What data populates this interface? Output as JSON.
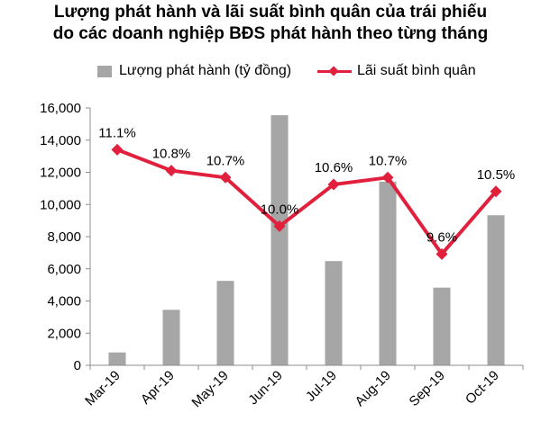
{
  "title_line1": "Lượng phát hành và lãi suất bình quân của trái phiếu",
  "title_line2": "do các doanh nghiệp BĐS phát hành theo từng tháng",
  "legend": {
    "bar_label": "Lượng phát hành (tỷ đồng)",
    "line_label": "Lãi suất bình quân"
  },
  "colors": {
    "bar": "#a6a6a6",
    "line": "#e0203c"
  },
  "chart_data": {
    "type": "bar+line",
    "categories": [
      "Mar-19",
      "Apr-19",
      "May-19",
      "Jun-19",
      "Jul-19",
      "Aug-19",
      "Sep-19",
      "Oct-19"
    ],
    "series": [
      {
        "name": "Lượng phát hành (tỷ đồng)",
        "type": "bar",
        "axis": "left",
        "values": [
          800,
          3450,
          5250,
          15550,
          6480,
          11420,
          4830,
          9330
        ]
      },
      {
        "name": "Lãi suất bình quân",
        "type": "line",
        "axis": "right",
        "values": [
          11.1,
          10.8,
          10.7,
          10.0,
          10.6,
          10.7,
          9.6,
          10.5
        ],
        "data_labels": [
          "11.1%",
          "10.8%",
          "10.7%",
          "10.0%",
          "10.6%",
          "10.7%",
          "9.6%",
          "10.5%"
        ]
      }
    ],
    "y_ticks": [
      "0",
      "2,000",
      "4,000",
      "6,000",
      "8,000",
      "10,000",
      "12,000",
      "14,000",
      "16,000"
    ],
    "ylim": [
      0,
      16000
    ],
    "y2lim": [
      8.0,
      11.7
    ],
    "grid": false,
    "legend_position": "top"
  }
}
